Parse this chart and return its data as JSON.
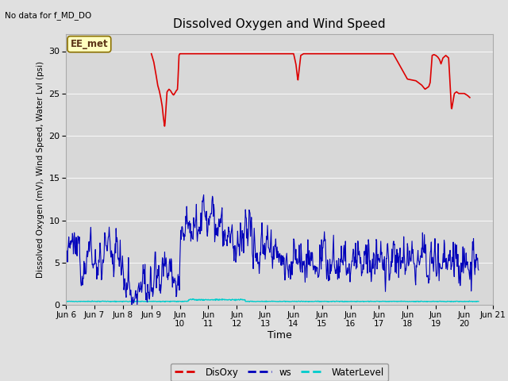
{
  "title": "Dissolved Oxygen and Wind Speed",
  "subtitle": "No data for f_MD_DO",
  "xlabel": "Time",
  "ylabel": "Dissolved Oxygen (mV), Wind Speed, Water Lvl (psi)",
  "ylim": [
    0,
    32
  ],
  "yticks": [
    0,
    5,
    10,
    15,
    20,
    25,
    30
  ],
  "fig_facecolor": "#e0e0e0",
  "plot_facecolor": "#d8d8d8",
  "annotation_text": "EE_met",
  "annotation_box_facecolor": "#ffffc0",
  "annotation_border_color": "#8b7000",
  "xtick_labels": [
    "Jun 6",
    "Jun 7",
    "Jun 8",
    "Jun 9",
    "Jun\n10",
    "Jun\n11",
    "Jun\n12",
    "Jun\n13",
    "Jun\n14",
    "Jun\n15",
    "Jun\n16",
    "Jun\n17",
    "Jun\n18",
    "Jun\n19",
    "Jun\n20",
    "Jun 21"
  ],
  "xtick_positions": [
    6,
    7,
    8,
    9,
    10,
    11,
    12,
    13,
    14,
    15,
    16,
    17,
    18,
    19,
    20,
    21
  ],
  "legend_labels": [
    "DisOxy",
    "ws",
    "WaterLevel"
  ],
  "DisOxy_color": "#dd0000",
  "ws_color": "#0000bb",
  "WaterLevel_color": "#00cccc",
  "DisOxy_x": [
    9.0,
    9.08,
    9.15,
    9.22,
    9.28,
    9.33,
    9.38,
    9.42,
    9.47,
    9.55,
    9.62,
    9.68,
    9.73,
    9.78,
    9.82,
    9.87,
    9.92,
    9.97,
    10.0,
    10.05,
    10.1,
    10.2,
    10.3,
    10.5,
    10.7,
    10.9,
    11.0,
    11.2,
    11.5,
    12.0,
    12.5,
    13.0,
    13.5,
    14.0,
    14.08,
    14.15,
    14.25,
    14.35,
    14.4,
    14.5,
    14.6,
    14.7,
    14.8,
    15.0,
    15.5,
    16.0,
    16.5,
    17.0,
    17.5,
    18.0,
    18.3,
    18.5,
    18.62,
    18.7,
    18.75,
    18.8,
    18.87,
    18.93,
    19.0,
    19.07,
    19.13,
    19.18,
    19.25,
    19.35,
    19.45,
    19.55,
    19.65,
    19.73,
    19.8,
    19.9,
    20.0,
    20.1,
    20.2
  ],
  "DisOxy_y": [
    29.7,
    28.8,
    27.5,
    26.0,
    25.3,
    24.5,
    23.5,
    22.2,
    21.0,
    25.2,
    25.5,
    25.3,
    25.0,
    24.8,
    25.0,
    25.3,
    25.5,
    29.5,
    29.7,
    29.7,
    29.7,
    29.7,
    29.7,
    29.7,
    29.7,
    29.7,
    29.7,
    29.7,
    29.7,
    29.7,
    29.7,
    29.7,
    29.7,
    29.7,
    28.5,
    26.5,
    29.5,
    29.7,
    29.7,
    29.7,
    29.7,
    29.7,
    29.7,
    29.7,
    29.7,
    29.7,
    29.7,
    29.7,
    29.7,
    26.7,
    26.5,
    26.0,
    25.5,
    25.7,
    25.8,
    26.3,
    29.5,
    29.6,
    29.5,
    29.3,
    29.0,
    28.5,
    29.2,
    29.5,
    29.2,
    23.0,
    25.0,
    25.2,
    25.0,
    25.0,
    25.0,
    24.8,
    24.5
  ],
  "ws_seed": 12345,
  "wl_base": 0.4,
  "wl_bump_start": 10.3,
  "wl_bump_end": 12.3,
  "wl_bump_val": 0.6
}
